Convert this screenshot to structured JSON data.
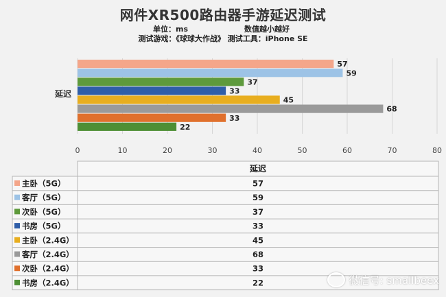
{
  "header": {
    "title": "网件XR500路由器手游延迟测试",
    "unit": "单位：ms",
    "note": "数值越小越好",
    "test_info": "测试游戏：《球球大作战》  测试工具：iPhone SE"
  },
  "watermark": {
    "text": "微信号: smallbeex",
    "icon": "wechat-icon"
  },
  "chart_data": {
    "type": "bar",
    "orientation": "horizontal",
    "categories": [
      "延迟"
    ],
    "xlim": [
      0,
      80
    ],
    "xticks": [
      0,
      10,
      20,
      30,
      40,
      50,
      60,
      70,
      80
    ],
    "grid": true,
    "series": [
      {
        "name": "主卧（5G）",
        "value": 57,
        "color": "#f4a68a"
      },
      {
        "name": "客厅（5G）",
        "value": 59,
        "color": "#9dc3e6"
      },
      {
        "name": "次卧（5G）",
        "value": 37,
        "color": "#5e9a3c"
      },
      {
        "name": "书房（5G）",
        "value": 33,
        "color": "#2f5ea8"
      },
      {
        "name": "主卧（2.4G）",
        "value": 45,
        "color": "#e8ae1f"
      },
      {
        "name": "客厅（2.4G）",
        "value": 68,
        "color": "#9a9a9a"
      },
      {
        "name": "次卧（2.4G）",
        "value": 33,
        "color": "#e0702d"
      },
      {
        "name": "书房（2.4G）",
        "value": 22,
        "color": "#4e8f35"
      }
    ],
    "table": {
      "header": "延迟"
    }
  }
}
